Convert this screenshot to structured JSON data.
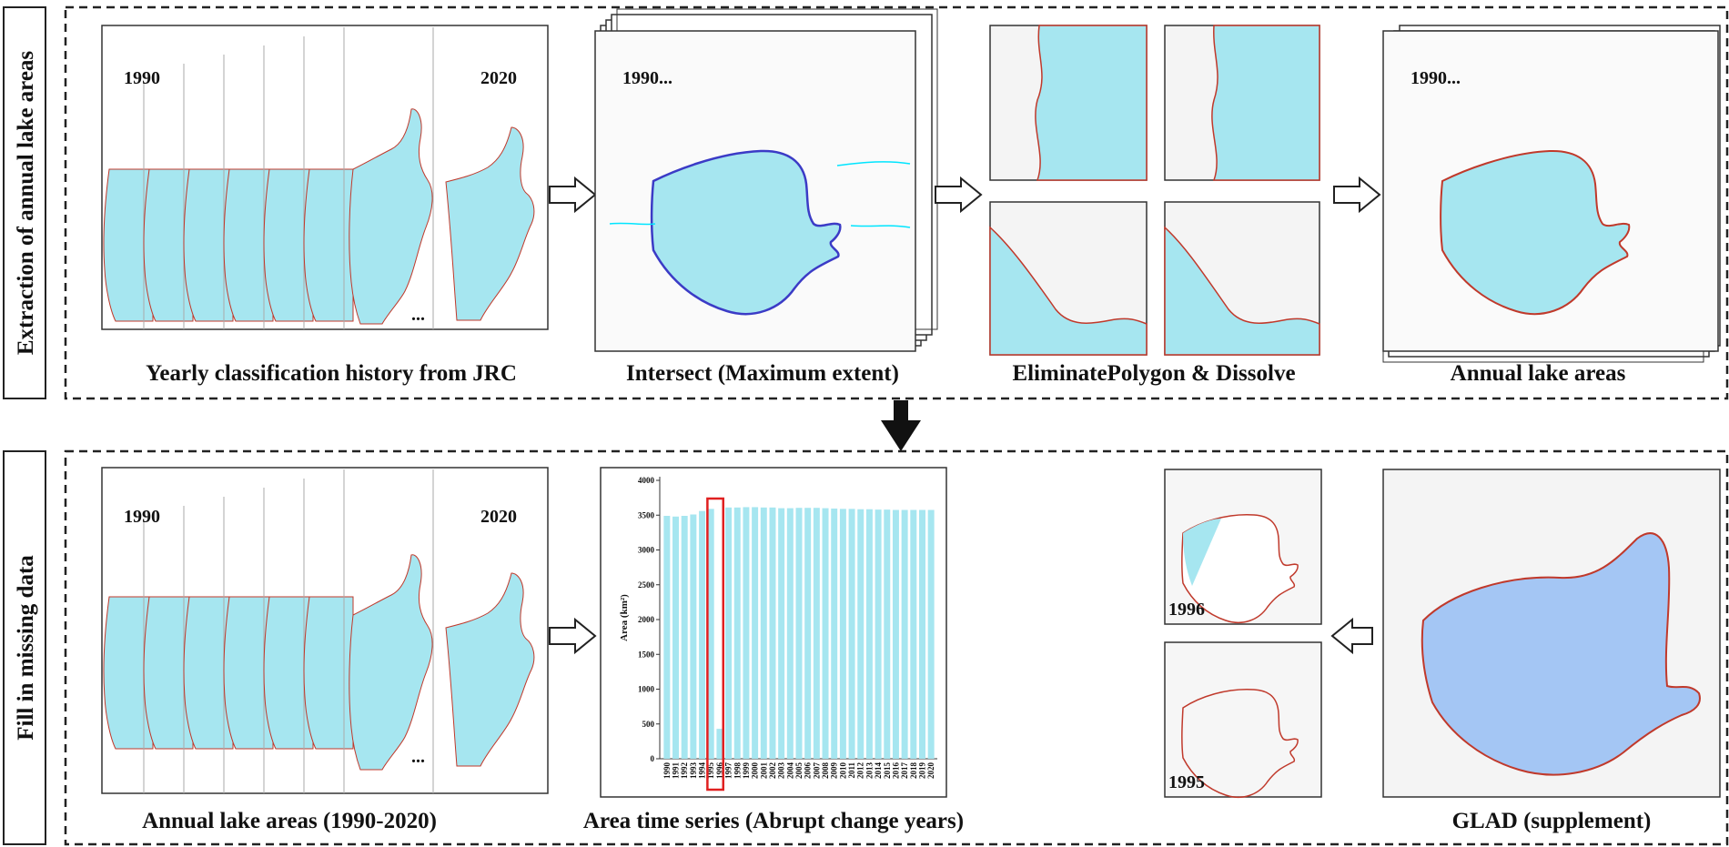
{
  "sections": {
    "top_label": "Extraction of annual lake areas",
    "bottom_label": "Fill in missing data"
  },
  "top_row": {
    "stack_start_year": "1990",
    "stack_end_year": "2020",
    "ellipsis": "...",
    "stack_caption": "Yearly classification history from JRC",
    "intersect_year": "1990...",
    "intersect_caption": "Intersect (Maximum extent)",
    "eliminate_caption": "EliminatePolygon & Dissolve",
    "annual_year": "1990...",
    "annual_caption": "Annual lake areas"
  },
  "bottom_row": {
    "stack_start_year": "1990",
    "stack_end_year": "2020",
    "ellipsis": "...",
    "stack_caption": "Annual lake areas (1990-2020)",
    "chart_caption": "Area time series (Abrupt change years)",
    "map_1996_label": "1996",
    "map_1995_label": "1995",
    "glad_caption": "GLAD (supplement)"
  },
  "colors": {
    "water": "#a6e6f0",
    "glad_water": "#a4c6f4",
    "outline": "#c0392b",
    "highlight": "#e02020",
    "bar": "#a6e6f0"
  },
  "chart_data": {
    "type": "bar",
    "categories": [
      "1990",
      "1991",
      "1992",
      "1993",
      "1994",
      "1995",
      "1996",
      "1997",
      "1998",
      "1999",
      "2000",
      "2001",
      "2002",
      "2003",
      "2004",
      "2005",
      "2006",
      "2007",
      "2008",
      "2009",
      "2010",
      "2011",
      "2012",
      "2013",
      "2014",
      "2015",
      "2016",
      "2017",
      "2018",
      "2019",
      "2020"
    ],
    "values": [
      3490,
      3480,
      3490,
      3510,
      3560,
      3590,
      430,
      3610,
      3610,
      3615,
      3615,
      3610,
      3610,
      3600,
      3600,
      3605,
      3605,
      3605,
      3600,
      3595,
      3590,
      3590,
      3585,
      3585,
      3580,
      3580,
      3575,
      3575,
      3575,
      3575,
      3575
    ],
    "ylabel": "Area (km²)",
    "yticks": [
      0,
      500,
      1000,
      1500,
      2000,
      2500,
      3000,
      3500,
      4000
    ],
    "ylim": [
      0,
      4000
    ],
    "highlight_categories": [
      "1995",
      "1996"
    ],
    "grid": false
  }
}
